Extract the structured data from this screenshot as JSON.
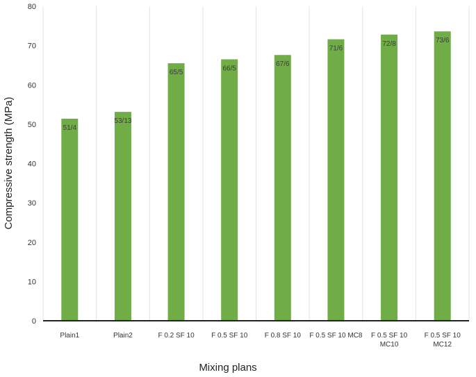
{
  "chart_data": {
    "type": "bar",
    "xlabel": "Mixing plans",
    "ylabel": "Compressive strength (MPa)",
    "ylim": [
      0,
      80
    ],
    "yticks": [
      "0",
      "10",
      "20",
      "30",
      "40",
      "50",
      "60",
      "70",
      "80"
    ],
    "grid": "vertical category gridlines",
    "bar_color": "#70ad47",
    "categories": [
      "Plain1",
      "Plain2",
      "F 0.2 SF 10",
      "F 0.5 SF 10",
      "F 0.8 SF 10",
      "F 0.5 SF 10 MC8",
      "F 0.5 SF 10 MC10",
      "F 0.5 SF 10 MC12"
    ],
    "category_lines": [
      [
        "Plain1"
      ],
      [
        "Plain2"
      ],
      [
        "F 0.2 SF 10"
      ],
      [
        "F 0.5 SF 10"
      ],
      [
        "F 0.8 SF 10"
      ],
      [
        "F 0.5 SF 10 MC8"
      ],
      [
        "F 0.5 SF 10",
        "MC10"
      ],
      [
        "F 0.5 SF 10",
        "MC12"
      ]
    ],
    "values": [
      51.4,
      53.13,
      65.5,
      66.5,
      67.6,
      71.6,
      72.8,
      73.6
    ],
    "data_labels": [
      "51/4",
      "53/13",
      "65/5",
      "66/5",
      "67/6",
      "71/6",
      "72/8",
      "73/6"
    ]
  }
}
